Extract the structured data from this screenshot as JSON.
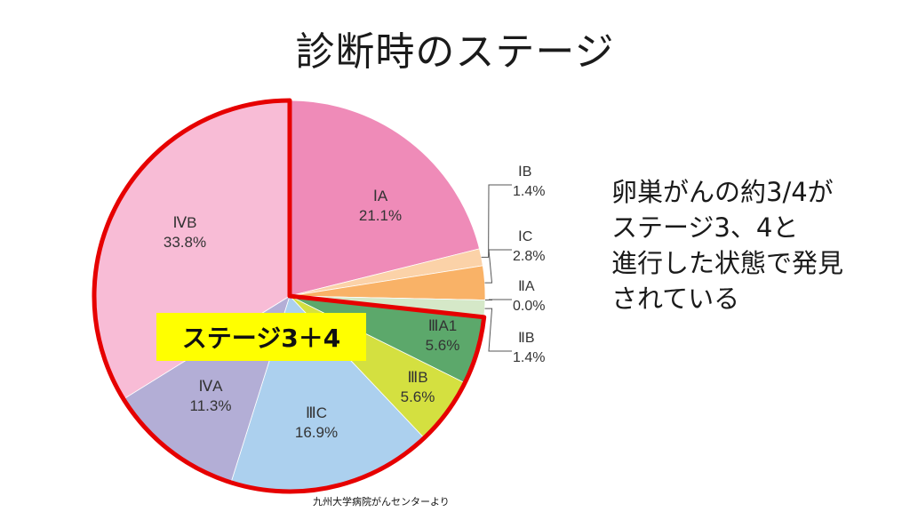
{
  "title": "診断時のステージ",
  "chart_data": {
    "type": "pie",
    "slices": [
      {
        "label": "ⅠA",
        "value": 21.1,
        "value_label": "21.1%",
        "color": "#ef8bb8"
      },
      {
        "label": "ⅠB",
        "value": 1.4,
        "value_label": "1.4%",
        "color": "#fbd2a8"
      },
      {
        "label": "ⅠC",
        "value": 2.8,
        "value_label": "2.8%",
        "color": "#f9b267"
      },
      {
        "label": "ⅡA",
        "value": 0.0,
        "value_label": "0.0%",
        "color": "#e8b060"
      },
      {
        "label": "ⅡB",
        "value": 1.4,
        "value_label": "1.4%",
        "color": "#d5e8c8"
      },
      {
        "label": "ⅢA1",
        "value": 5.6,
        "value_label": "5.6%",
        "color": "#5ca86b"
      },
      {
        "label": "ⅢB",
        "value": 5.6,
        "value_label": "5.6%",
        "color": "#d4e040"
      },
      {
        "label": "ⅢC",
        "value": 16.9,
        "value_label": "16.9%",
        "color": "#acd0ee"
      },
      {
        "label": "ⅣA",
        "value": 11.3,
        "value_label": "11.3%",
        "color": "#b3aed6"
      },
      {
        "label": "ⅣB",
        "value": 33.8,
        "value_label": "33.8%",
        "color": "#f8bcd6"
      }
    ],
    "highlight": {
      "label": "ステージ3＋4",
      "color": "#e60000",
      "badge_color": "#ffff00"
    }
  },
  "annotation": {
    "lines": [
      "卵巣がんの約3/4が",
      "ステージ3、4と",
      "進行した状態で発見",
      "されている"
    ]
  },
  "source": "九州大学病院がんセンターより"
}
